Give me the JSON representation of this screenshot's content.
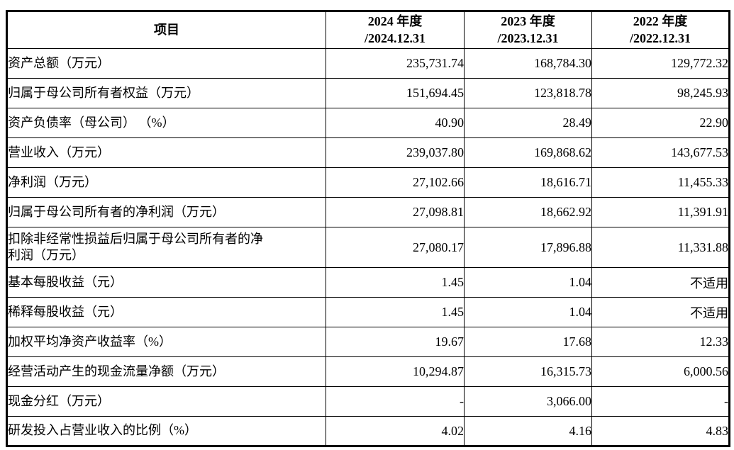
{
  "table": {
    "header": {
      "item_label": "项目",
      "columns": [
        {
          "line1": "2024 年度",
          "line2": "/2024.12.31"
        },
        {
          "line1": "2023 年度",
          "line2": "/2023.12.31"
        },
        {
          "line1": "2022 年度",
          "line2": "/2022.12.31"
        }
      ]
    },
    "rows": [
      {
        "label": "资产总额（万元）",
        "values": [
          "235,731.74",
          "168,784.30",
          "129,772.32"
        ]
      },
      {
        "label": "归属于母公司所有者权益（万元）",
        "values": [
          "151,694.45",
          "123,818.78",
          "98,245.93"
        ]
      },
      {
        "label": "资产负债率（母公司） （%）",
        "values": [
          "40.90",
          "28.49",
          "22.90"
        ]
      },
      {
        "label": "营业收入（万元）",
        "values": [
          "239,037.80",
          "169,868.62",
          "143,677.53"
        ]
      },
      {
        "label": "净利润（万元）",
        "values": [
          "27,102.66",
          "18,616.71",
          "11,455.33"
        ]
      },
      {
        "label": "归属于母公司所有者的净利润（万元）",
        "values": [
          "27,098.81",
          "18,662.92",
          "11,391.91"
        ]
      },
      {
        "label": "扣除非经常性损益后归属于母公司所有者的净\n利润（万元）",
        "values": [
          "27,080.17",
          "17,896.88",
          "11,331.88"
        ]
      },
      {
        "label": "基本每股收益（元）",
        "values": [
          "1.45",
          "1.04",
          "不适用"
        ]
      },
      {
        "label": "稀释每股收益（元）",
        "values": [
          "1.45",
          "1.04",
          "不适用"
        ]
      },
      {
        "label": "加权平均净资产收益率（%）",
        "values": [
          "19.67",
          "17.68",
          "12.33"
        ]
      },
      {
        "label": "经营活动产生的现金流量净额（万元）",
        "values": [
          "10,294.87",
          "16,315.73",
          "6,000.56"
        ]
      },
      {
        "label": "现金分红（万元）",
        "values": [
          "-",
          "3,066.00",
          "-"
        ]
      },
      {
        "label": "研发投入占营业收入的比例（%）",
        "values": [
          "4.02",
          "4.16",
          "4.83"
        ]
      }
    ]
  }
}
